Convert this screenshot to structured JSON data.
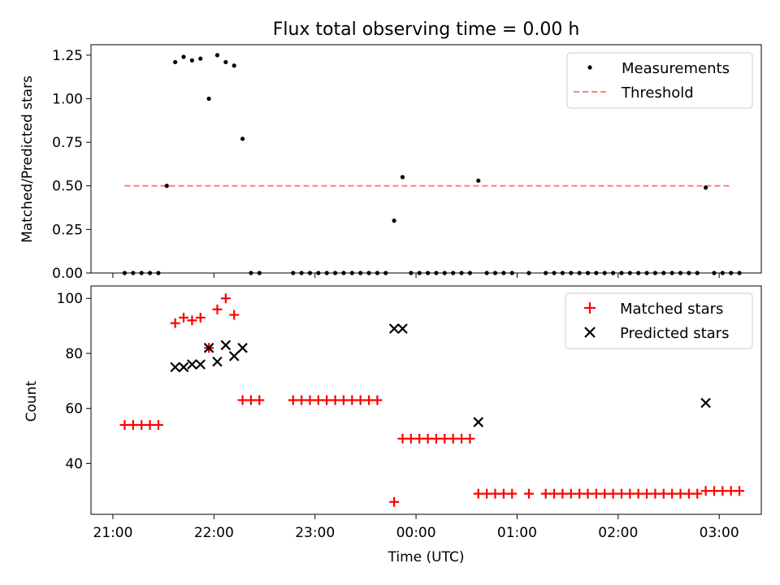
{
  "title": "Flux total observing time = 0.00 h",
  "colors": {
    "measurements": "#000000",
    "threshold": "#ff7f7f",
    "matched": "#ff0000",
    "predicted": "#000000"
  },
  "chart_data": [
    {
      "type": "scatter",
      "title": "Flux total observing time = 0.00 h",
      "xlabel": "",
      "ylabel": "Matched/Predicted stars",
      "x_unit": "time (UTC), h:mm relative to 00:00",
      "xlim": [
        "20:47",
        "03:25"
      ],
      "ylim": [
        0,
        1.31
      ],
      "yticks": [
        "0.00",
        "0.25",
        "0.50",
        "0.75",
        "1.00",
        "1.25"
      ],
      "legend": {
        "position": "top-right",
        "entries": [
          "Measurements",
          "Threshold"
        ]
      },
      "threshold": {
        "name": "Threshold",
        "value": 0.5,
        "x_from": "21:07",
        "x_to": "03:07",
        "style": "dashed"
      },
      "series": [
        {
          "name": "Measurements",
          "marker": "dot",
          "points": [
            [
              "21:07",
              0
            ],
            [
              "21:12",
              0
            ],
            [
              "21:17",
              0
            ],
            [
              "21:22",
              0
            ],
            [
              "21:27",
              0
            ],
            [
              "21:32",
              0.5
            ],
            [
              "21:37",
              1.21
            ],
            [
              "21:42",
              1.24
            ],
            [
              "21:47",
              1.22
            ],
            [
              "21:52",
              1.23
            ],
            [
              "21:57",
              1.0
            ],
            [
              "22:02",
              1.25
            ],
            [
              "22:07",
              1.21
            ],
            [
              "22:12",
              1.19
            ],
            [
              "22:17",
              0.77
            ],
            [
              "22:22",
              0
            ],
            [
              "22:27",
              0
            ],
            [
              "22:47",
              0
            ],
            [
              "22:52",
              0
            ],
            [
              "22:57",
              0
            ],
            [
              "23:02",
              0
            ],
            [
              "23:07",
              0
            ],
            [
              "23:12",
              0
            ],
            [
              "23:17",
              0
            ],
            [
              "23:22",
              0
            ],
            [
              "23:27",
              0
            ],
            [
              "23:32",
              0
            ],
            [
              "23:37",
              0
            ],
            [
              "23:42",
              0
            ],
            [
              "23:47",
              0.3
            ],
            [
              "23:52",
              0.55
            ],
            [
              "23:57",
              0
            ],
            [
              "00:02",
              0
            ],
            [
              "00:07",
              0
            ],
            [
              "00:12",
              0
            ],
            [
              "00:17",
              0
            ],
            [
              "00:22",
              0
            ],
            [
              "00:27",
              0
            ],
            [
              "00:32",
              0
            ],
            [
              "00:37",
              0.53
            ],
            [
              "00:42",
              0
            ],
            [
              "00:47",
              0
            ],
            [
              "00:52",
              0
            ],
            [
              "00:57",
              0
            ],
            [
              "01:07",
              0
            ],
            [
              "01:17",
              0
            ],
            [
              "01:22",
              0
            ],
            [
              "01:27",
              0
            ],
            [
              "01:32",
              0
            ],
            [
              "01:37",
              0
            ],
            [
              "01:42",
              0
            ],
            [
              "01:47",
              0
            ],
            [
              "01:52",
              0
            ],
            [
              "01:57",
              0
            ],
            [
              "02:02",
              0
            ],
            [
              "02:07",
              0
            ],
            [
              "02:12",
              0
            ],
            [
              "02:17",
              0
            ],
            [
              "02:22",
              0
            ],
            [
              "02:27",
              0
            ],
            [
              "02:32",
              0
            ],
            [
              "02:37",
              0
            ],
            [
              "02:42",
              0
            ],
            [
              "02:47",
              0
            ],
            [
              "02:52",
              0.49
            ],
            [
              "02:57",
              0
            ],
            [
              "03:02",
              0
            ],
            [
              "03:07",
              0
            ],
            [
              "03:12",
              0
            ]
          ]
        }
      ]
    },
    {
      "type": "scatter",
      "title": "",
      "xlabel": "Time (UTC)",
      "ylabel": "Count",
      "x_unit": "time (UTC), h:mm relative to 00:00",
      "xlim": [
        "20:47",
        "03:25"
      ],
      "ylim": [
        21.5,
        104.5
      ],
      "yticks": [
        "40",
        "60",
        "80",
        "100"
      ],
      "xticks": [
        "21:00",
        "22:00",
        "23:00",
        "00:00",
        "01:00",
        "02:00",
        "03:00"
      ],
      "legend": {
        "position": "top-right",
        "entries": [
          "Matched stars",
          "Predicted stars"
        ]
      },
      "series": [
        {
          "name": "Matched stars",
          "marker": "plus",
          "points": [
            [
              "21:07",
              54
            ],
            [
              "21:12",
              54
            ],
            [
              "21:17",
              54
            ],
            [
              "21:22",
              54
            ],
            [
              "21:27",
              54
            ],
            [
              "21:37",
              91
            ],
            [
              "21:42",
              93
            ],
            [
              "21:47",
              92
            ],
            [
              "21:52",
              93
            ],
            [
              "21:57",
              82
            ],
            [
              "22:02",
              96
            ],
            [
              "22:07",
              100
            ],
            [
              "22:12",
              94
            ],
            [
              "22:17",
              63
            ],
            [
              "22:22",
              63
            ],
            [
              "22:27",
              63
            ],
            [
              "22:47",
              63
            ],
            [
              "22:52",
              63
            ],
            [
              "22:57",
              63
            ],
            [
              "23:02",
              63
            ],
            [
              "23:07",
              63
            ],
            [
              "23:12",
              63
            ],
            [
              "23:17",
              63
            ],
            [
              "23:22",
              63
            ],
            [
              "23:27",
              63
            ],
            [
              "23:32",
              63
            ],
            [
              "23:37",
              63
            ],
            [
              "23:47",
              26
            ],
            [
              "23:52",
              49
            ],
            [
              "23:57",
              49
            ],
            [
              "00:02",
              49
            ],
            [
              "00:07",
              49
            ],
            [
              "00:12",
              49
            ],
            [
              "00:17",
              49
            ],
            [
              "00:22",
              49
            ],
            [
              "00:27",
              49
            ],
            [
              "00:32",
              49
            ],
            [
              "00:37",
              29
            ],
            [
              "00:42",
              29
            ],
            [
              "00:47",
              29
            ],
            [
              "00:52",
              29
            ],
            [
              "00:57",
              29
            ],
            [
              "01:07",
              29
            ],
            [
              "01:17",
              29
            ],
            [
              "01:22",
              29
            ],
            [
              "01:27",
              29
            ],
            [
              "01:32",
              29
            ],
            [
              "01:37",
              29
            ],
            [
              "01:42",
              29
            ],
            [
              "01:47",
              29
            ],
            [
              "01:52",
              29
            ],
            [
              "01:57",
              29
            ],
            [
              "02:02",
              29
            ],
            [
              "02:07",
              29
            ],
            [
              "02:12",
              29
            ],
            [
              "02:17",
              29
            ],
            [
              "02:22",
              29
            ],
            [
              "02:27",
              29
            ],
            [
              "02:32",
              29
            ],
            [
              "02:37",
              29
            ],
            [
              "02:42",
              29
            ],
            [
              "02:47",
              29
            ],
            [
              "02:52",
              30
            ],
            [
              "02:57",
              30
            ],
            [
              "03:02",
              30
            ],
            [
              "03:07",
              30
            ],
            [
              "03:12",
              30
            ]
          ]
        },
        {
          "name": "Predicted stars",
          "marker": "x",
          "points": [
            [
              "21:37",
              75
            ],
            [
              "21:42",
              75
            ],
            [
              "21:47",
              76
            ],
            [
              "21:52",
              76
            ],
            [
              "21:57",
              82
            ],
            [
              "22:02",
              77
            ],
            [
              "22:07",
              83
            ],
            [
              "22:12",
              79
            ],
            [
              "22:17",
              82
            ],
            [
              "23:47",
              89
            ],
            [
              "23:52",
              89
            ],
            [
              "00:37",
              55
            ],
            [
              "02:52",
              62
            ]
          ]
        }
      ]
    }
  ]
}
